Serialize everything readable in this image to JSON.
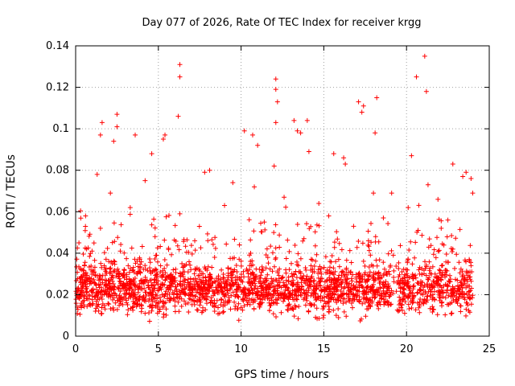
{
  "chart_data": {
    "type": "scatter",
    "title": "Day 077 of 2026, Rate Of TEC Index for receiver krgg",
    "xlabel": "GPS time / hours",
    "ylabel": "ROTI / TECUs",
    "xlim": [
      0,
      25
    ],
    "ylim": [
      0,
      0.14
    ],
    "xticks": [
      "0",
      "5",
      "10",
      "15",
      "20",
      "25"
    ],
    "yticks": [
      "0",
      "0.02",
      "0.04",
      "0.06",
      "0.08",
      "0.1",
      "0.12",
      "0.14"
    ],
    "grid": true,
    "marker": "+",
    "color": "#ff0000",
    "series": [
      {
        "name": "ROTI",
        "x": [
          0.1,
          0.2,
          0.4,
          0.6,
          0.8,
          1.0,
          1.2,
          1.5,
          1.8,
          2.1,
          2.4,
          2.7,
          3.0,
          3.3,
          3.6,
          3.9,
          4.2,
          4.5,
          4.8,
          5.1,
          5.4,
          5.7,
          6.0,
          6.3,
          6.6,
          6.9,
          7.2,
          7.5,
          7.8,
          8.1,
          8.4,
          8.7,
          9.0,
          9.3,
          9.6,
          9.9,
          10.2,
          10.5,
          10.8,
          11.1,
          11.4,
          11.7,
          12.0,
          12.3,
          12.6,
          12.9,
          13.2,
          13.5,
          13.8,
          14.1,
          14.4,
          14.7,
          15.0,
          15.3,
          15.6,
          15.9,
          16.2,
          16.5,
          16.8,
          17.1,
          17.4,
          17.7,
          18.0,
          18.3,
          18.6,
          18.9,
          19.2,
          19.5,
          19.8,
          20.1,
          20.4,
          20.7,
          21.0,
          21.3,
          21.6,
          21.9,
          22.2,
          22.5,
          22.8,
          23.1,
          23.4,
          23.7,
          23.9,
          6.3,
          6.3,
          12.1,
          12.1,
          12.2,
          14.0,
          21.1,
          21.2,
          20.6,
          17.3,
          17.4,
          18.2,
          18.1,
          2.5,
          2.5,
          1.6,
          1.5,
          3.6,
          5.3,
          6.2,
          10.7,
          12.1,
          13.4,
          13.6,
          22.8,
          23.9,
          23.6,
          24.0,
          2.3,
          1.3,
          4.6,
          8.1,
          9.5,
          11.0,
          15.6,
          16.3,
          19.1,
          20.3
        ],
        "y": [
          0.014,
          0.045,
          0.022,
          0.058,
          0.018,
          0.031,
          0.012,
          0.052,
          0.027,
          0.069,
          0.016,
          0.041,
          0.024,
          0.062,
          0.019,
          0.033,
          0.075,
          0.021,
          0.048,
          0.013,
          0.097,
          0.028,
          0.017,
          0.059,
          0.034,
          0.022,
          0.046,
          0.015,
          0.079,
          0.029,
          0.038,
          0.011,
          0.063,
          0.025,
          0.032,
          0.044,
          0.099,
          0.018,
          0.072,
          0.028,
          0.055,
          0.016,
          0.082,
          0.024,
          0.067,
          0.019,
          0.104,
          0.031,
          0.047,
          0.089,
          0.021,
          0.064,
          0.014,
          0.058,
          0.026,
          0.037,
          0.086,
          0.022,
          0.053,
          0.113,
          0.018,
          0.046,
          0.069,
          0.028,
          0.057,
          0.015,
          0.039,
          0.012,
          0.021,
          0.062,
          0.029,
          0.051,
          0.017,
          0.073,
          0.024,
          0.066,
          0.019,
          0.056,
          0.042,
          0.022,
          0.077,
          0.015,
          0.034,
          0.131,
          0.125,
          0.124,
          0.119,
          0.113,
          0.104,
          0.135,
          0.118,
          0.125,
          0.108,
          0.111,
          0.115,
          0.098,
          0.107,
          0.101,
          0.103,
          0.097,
          0.097,
          0.095,
          0.106,
          0.097,
          0.103,
          0.099,
          0.098,
          0.083,
          0.076,
          0.079,
          0.069,
          0.094,
          0.078,
          0.088,
          0.08,
          0.074,
          0.092,
          0.088,
          0.083,
          0.069,
          0.087
        ]
      }
    ]
  }
}
